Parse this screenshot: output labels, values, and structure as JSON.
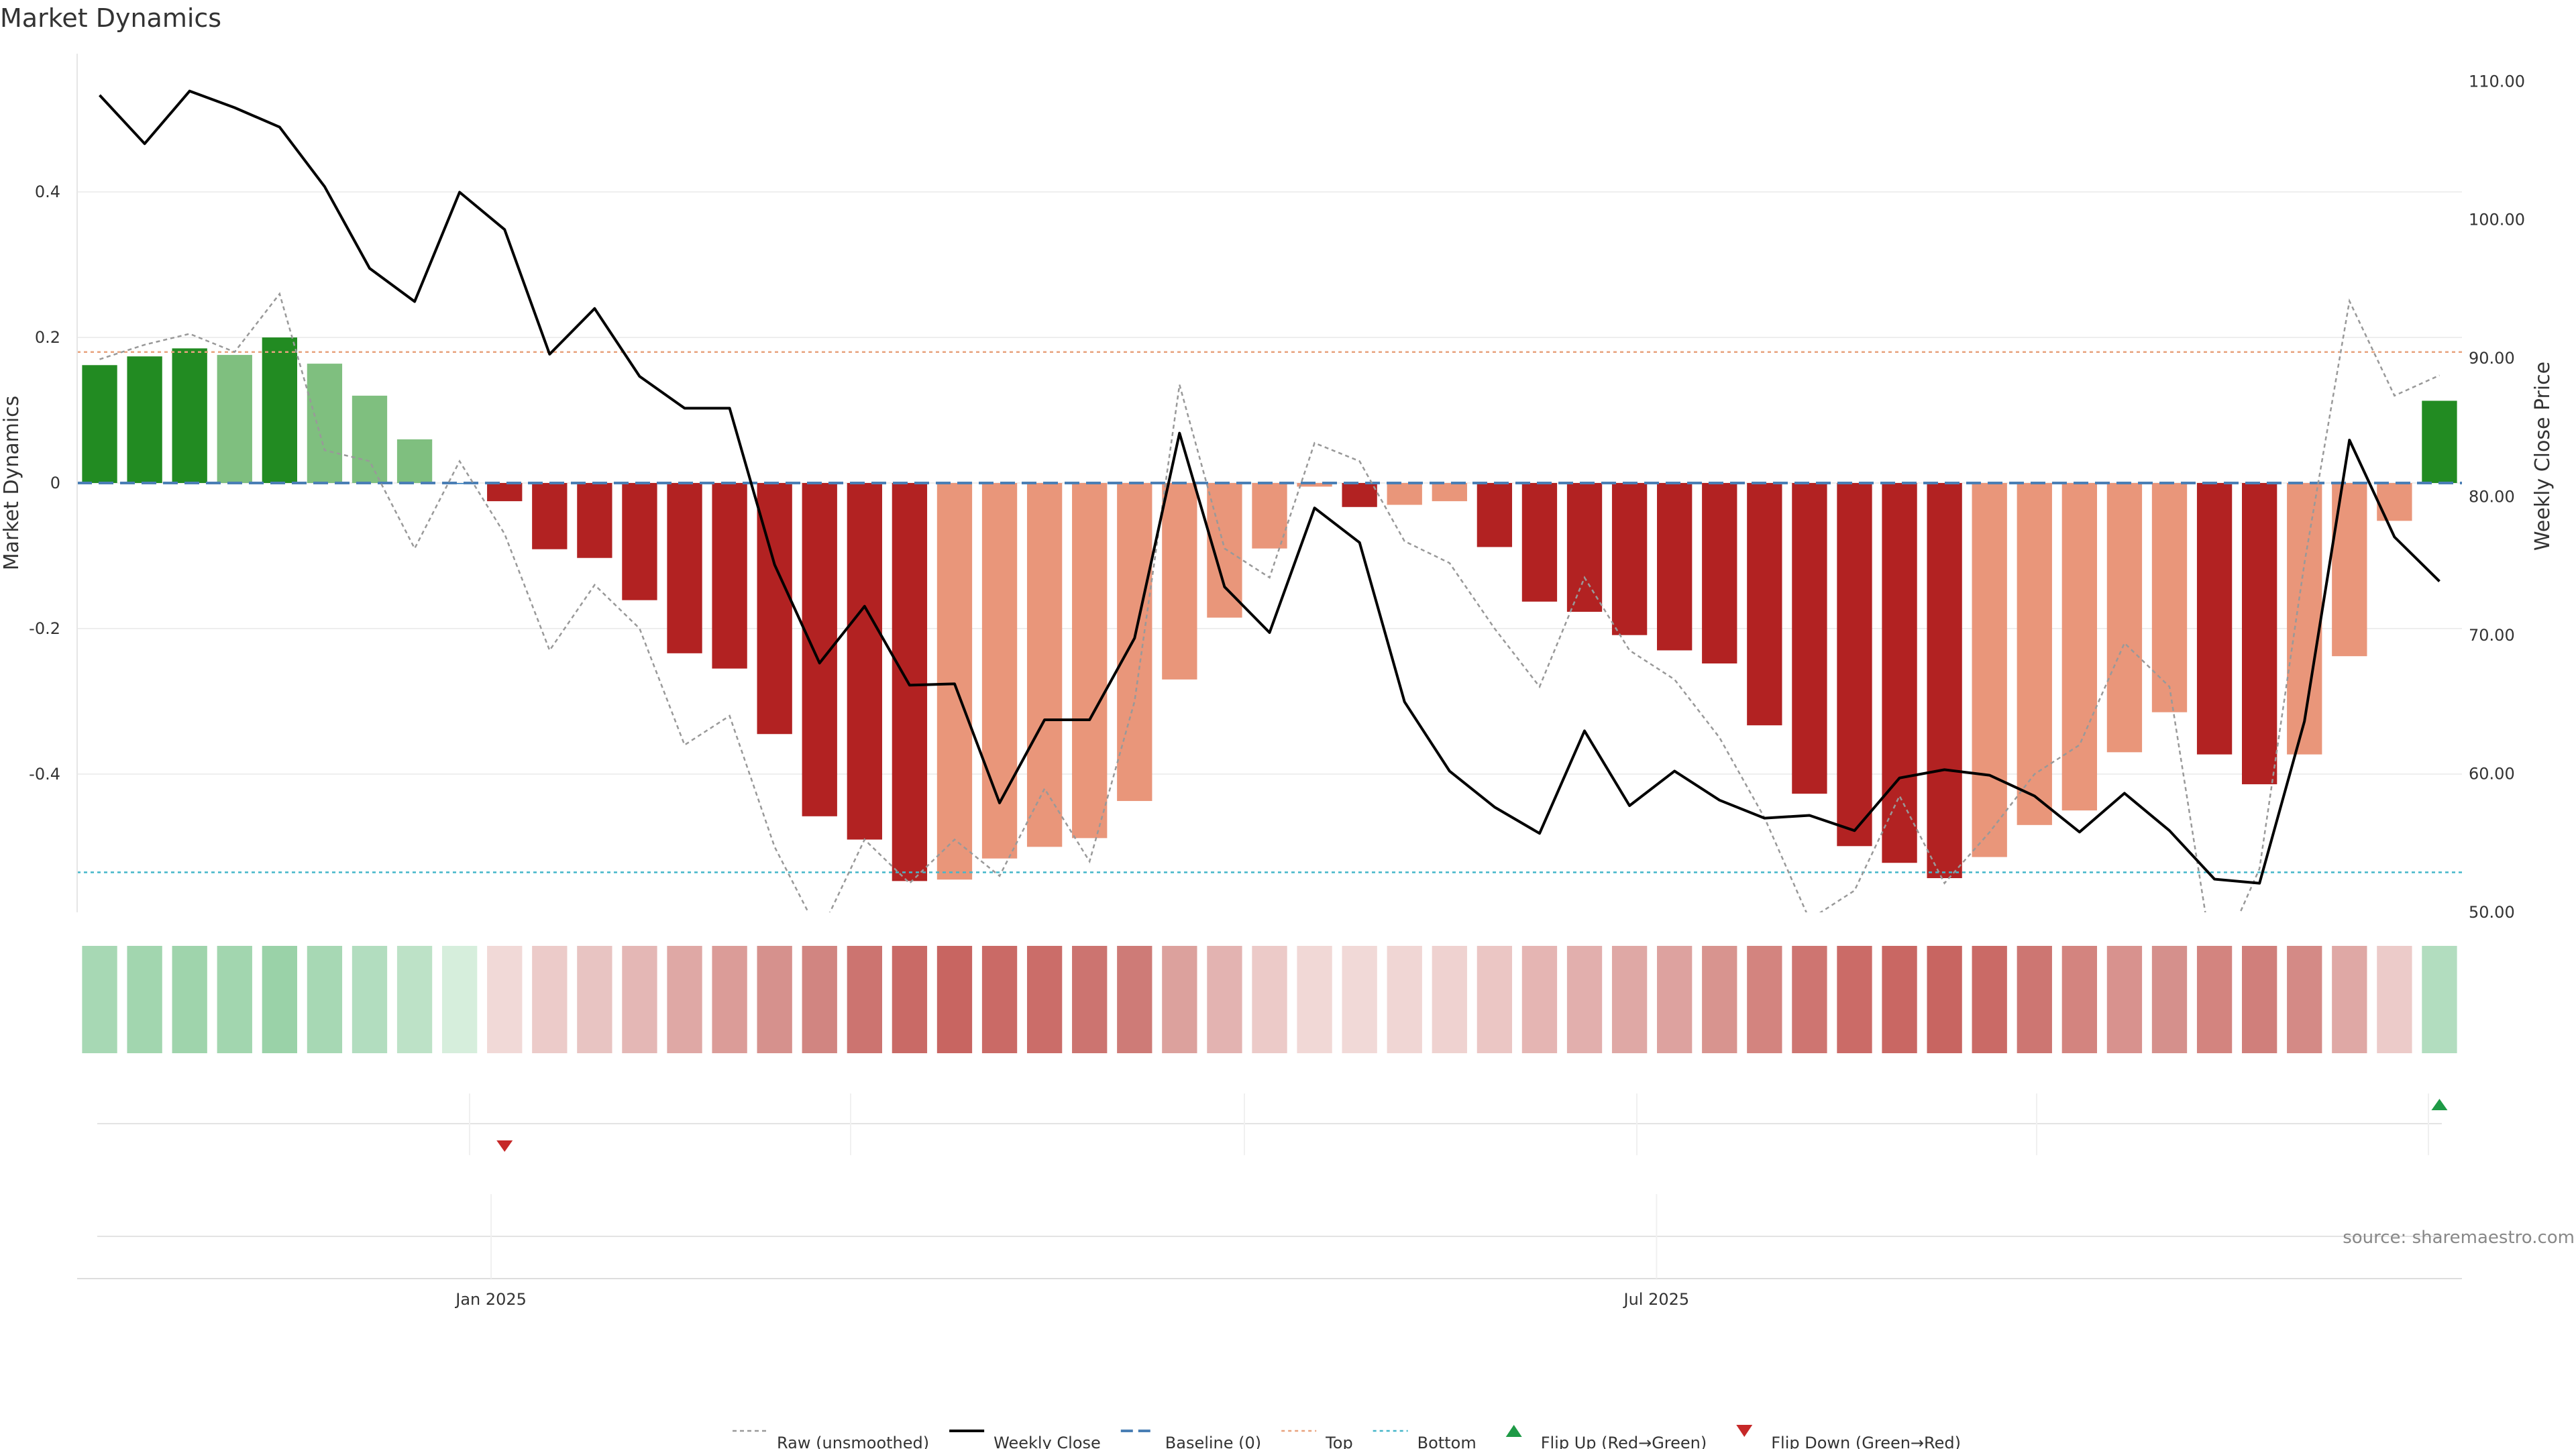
{
  "chart_data": {
    "type": "bar",
    "title": "Market Dynamics",
    "ylabel_left": "Market Dynamics",
    "ylabel_right": "Weekly Close Price",
    "source": "source: sharemaestro.com",
    "left_ticks": [
      {
        "v": 0.4,
        "label": "0.4"
      },
      {
        "v": 0.2,
        "label": "0.2"
      },
      {
        "v": 0,
        "label": "0"
      },
      {
        "v": -0.2,
        "label": "-0.2"
      },
      {
        "v": -0.4,
        "label": "-0.4"
      }
    ],
    "right_ticks": [
      {
        "v": 110,
        "label": "110.00"
      },
      {
        "v": 100,
        "label": "100.00"
      },
      {
        "v": 90,
        "label": "90.00"
      },
      {
        "v": 80,
        "label": "80.00"
      },
      {
        "v": 70,
        "label": "70.00"
      },
      {
        "v": 60,
        "label": "60.00"
      },
      {
        "v": 50,
        "label": "50.00"
      }
    ],
    "x_ticks": [
      {
        "index": 8.7,
        "label": "Jan 2025"
      },
      {
        "index": 34.6,
        "label": "Jul 2025"
      }
    ],
    "left_ylim": [
      -0.59,
      0.59
    ],
    "right_ylim": [
      50,
      112
    ],
    "top_level": 0.18,
    "bottom_level": -0.535,
    "baseline": 0,
    "values": [
      0.162,
      0.174,
      0.185,
      0.176,
      0.2,
      0.164,
      0.12,
      0.06,
      -0.001,
      -0.025,
      -0.091,
      -0.103,
      -0.161,
      -0.234,
      -0.255,
      -0.345,
      -0.458,
      -0.49,
      -0.547,
      -0.545,
      -0.516,
      -0.5,
      -0.488,
      -0.437,
      -0.27,
      -0.185,
      -0.09,
      -0.005,
      -0.033,
      -0.03,
      -0.025,
      -0.088,
      -0.163,
      -0.177,
      -0.209,
      -0.23,
      -0.248,
      -0.333,
      -0.427,
      -0.499,
      -0.522,
      -0.543,
      -0.514,
      -0.47,
      -0.45,
      -0.37,
      -0.315,
      -0.373,
      -0.414,
      -0.373,
      -0.238,
      -0.052,
      0.113
    ],
    "colors": [
      "#228B22",
      "#228B22",
      "#228B22",
      "#7FBF7F",
      "#228B22",
      "#7FBF7F",
      "#7FBF7F",
      "#7FBF7F",
      "#2E7BBF",
      "#B22222",
      "#B22222",
      "#B22222",
      "#B22222",
      "#B22222",
      "#B22222",
      "#B22222",
      "#B22222",
      "#B22222",
      "#B22222",
      "#E9967A",
      "#E9967A",
      "#E9967A",
      "#E9967A",
      "#E9967A",
      "#E9967A",
      "#E9967A",
      "#E9967A",
      "#E9967A",
      "#B22222",
      "#E9967A",
      "#E9967A",
      "#B22222",
      "#B22222",
      "#B22222",
      "#B22222",
      "#B22222",
      "#B22222",
      "#B22222",
      "#B22222",
      "#B22222",
      "#B22222",
      "#B22222",
      "#E9967A",
      "#E9967A",
      "#E9967A",
      "#E9967A",
      "#E9967A",
      "#B22222",
      "#B22222",
      "#E9967A",
      "#E9967A",
      "#E9967A",
      "#228B22"
    ],
    "raw": [
      0.17,
      0.19,
      0.205,
      0.18,
      0.26,
      0.045,
      0.03,
      -0.09,
      0.03,
      -0.07,
      -0.23,
      -0.14,
      -0.2,
      -0.36,
      -0.32,
      -0.5,
      -0.62,
      -0.49,
      -0.55,
      -0.49,
      -0.54,
      -0.42,
      -0.52,
      -0.3,
      0.135,
      -0.09,
      -0.13,
      0.055,
      0.03,
      -0.08,
      -0.11,
      -0.2,
      -0.28,
      -0.13,
      -0.23,
      -0.27,
      -0.35,
      -0.46,
      -0.6,
      -0.56,
      -0.43,
      -0.55,
      -0.48,
      -0.4,
      -0.36,
      -0.22,
      -0.28,
      -0.67,
      -0.53,
      -0.11,
      0.25,
      0.12,
      0.148
    ],
    "close": [
      109,
      105.5,
      109.3,
      108.1,
      106.7,
      102.4,
      96.5,
      94.1,
      102,
      99.3,
      90.3,
      93.6,
      88.7,
      86.4,
      86.4,
      75.1,
      68,
      72.1,
      66.4,
      66.5,
      57.9,
      63.9,
      63.9,
      69.8,
      84.6,
      73.5,
      70.2,
      79.2,
      76.7,
      65.2,
      60.2,
      57.6,
      55.7,
      63.1,
      57.7,
      60.2,
      58.1,
      56.8,
      57,
      55.9,
      59.7,
      60.3,
      59.9,
      58.4,
      55.8,
      58.6,
      55.9,
      52.4,
      52.1,
      63.8,
      84.1,
      77.1,
      73.9
    ],
    "strip_colors": [
      "#A7D8B4",
      "#A2D6AF",
      "#9FD4AC",
      "#A2D6AF",
      "#9AD2A8",
      "#A7D8B4",
      "#B2DDBF",
      "#BDE2C7",
      "#D6EEDC",
      "#F1D9D7",
      "#ECCBC9",
      "#E8C4C2",
      "#E4B7B5",
      "#DFA8A5",
      "#DB9C98",
      "#D6918D",
      "#D18581",
      "#CC7470",
      "#C96A66",
      "#C86561",
      "#CA6A66",
      "#CB6D69",
      "#CC7470",
      "#CE7B77",
      "#DCA19D",
      "#E3B3B1",
      "#ECCAC8",
      "#F1D8D6",
      "#F1D9D7",
      "#F0D6D4",
      "#EFD2D0",
      "#EBC6C4",
      "#E5B5B3",
      "#E2AFAD",
      "#DFA8A5",
      "#DDA29F",
      "#D8948F",
      "#D3847F",
      "#CE7571",
      "#CB6B67",
      "#C96763",
      "#C86561",
      "#CA6A66",
      "#CD7672",
      "#D3847F",
      "#D8928E",
      "#D5908C",
      "#D3847F",
      "#D07F7B",
      "#D48A86",
      "#DFA8A5",
      "#ECCBC9",
      "#B2DDBF"
    ],
    "flips": [
      {
        "index": 9,
        "direction": "down"
      },
      {
        "index": 52,
        "direction": "up"
      }
    ],
    "legend": [
      {
        "label": "Raw (unsmoothed)",
        "kind": "raw"
      },
      {
        "label": "Weekly Close",
        "kind": "close"
      },
      {
        "label": "Baseline (0)",
        "kind": "baseline"
      },
      {
        "label": "Top",
        "kind": "top"
      },
      {
        "label": "Bottom",
        "kind": "bottom"
      },
      {
        "label": "Flip Up (Red→Green)",
        "kind": "flipup"
      },
      {
        "label": "Flip Down (Green→Red)",
        "kind": "flipdown"
      }
    ],
    "style": {
      "raw_color": "#999999",
      "close_color": "#000000",
      "baseline_color": "#4A7FB5",
      "top_color": "#E8A37E",
      "bottom_color": "#45B6C9",
      "flip_up_color": "#1E9A46",
      "flip_down_color": "#C62828",
      "grid_color": "#EEEEEE"
    }
  }
}
